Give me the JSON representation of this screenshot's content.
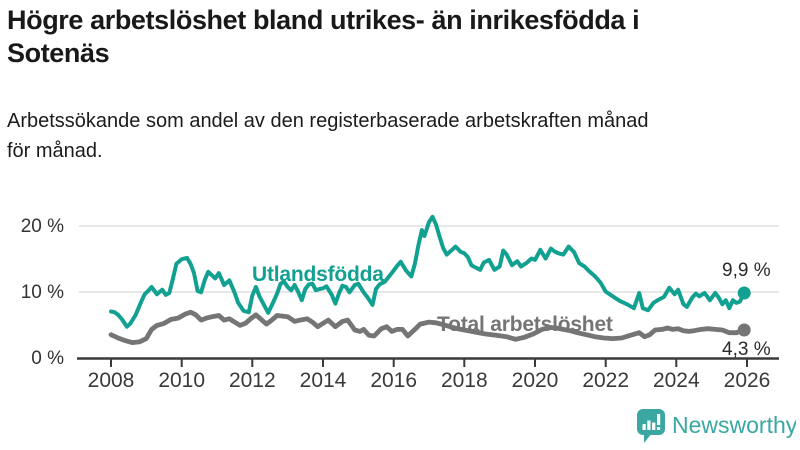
{
  "header": {
    "title_lines": [
      "Högre arbetslöshet bland utrikes- än inrikesfödda i",
      "Sotenäs"
    ],
    "subtitle_lines": [
      "Arbetssökande som andel av den registerbaserade arbetskraften månad",
      "för månad."
    ]
  },
  "branding": {
    "logo_text": "Newsworthy",
    "logo_icon": "bar-chart-speech-bubble",
    "brand_color": "#3aa7a2"
  },
  "chart_data": {
    "type": "line",
    "title": "Högre arbetslöshet bland utrikes- än inrikesfödda i Sotenäs",
    "subtitle": "Arbetssökande som andel av den registerbaserade arbetskraften månad för månad.",
    "grid": "horizontal",
    "legend_position": "inline-labels",
    "x_axis": {
      "ticks": [
        2008,
        2010,
        2012,
        2014,
        2016,
        2018,
        2020,
        2022,
        2024,
        2026
      ],
      "range": [
        2007.1,
        2026.9
      ]
    },
    "y_axis": {
      "ticks": [
        0,
        10,
        20
      ],
      "tick_labels": [
        "0 %",
        "10 %",
        "20 %"
      ],
      "unit": "%",
      "range": [
        0,
        23
      ]
    },
    "colors": {
      "utlandsfodda": "#12a091",
      "total": "#757575",
      "axis": "#3a3a3a",
      "gridline": "#d9d9d9"
    },
    "series": [
      {
        "name": "Utlandsfödda",
        "color": "#12a091",
        "end_label": "9,9 %",
        "end_value": 9.9,
        "points": [
          [
            2008.0,
            7.1
          ],
          [
            2008.1,
            7.0
          ],
          [
            2008.2,
            6.6
          ],
          [
            2008.3,
            6.0
          ],
          [
            2008.45,
            4.8
          ],
          [
            2008.55,
            5.3
          ],
          [
            2008.7,
            6.6
          ],
          [
            2008.85,
            8.5
          ],
          [
            2008.95,
            9.7
          ],
          [
            2009.05,
            10.2
          ],
          [
            2009.15,
            10.8
          ],
          [
            2009.3,
            9.7
          ],
          [
            2009.45,
            10.4
          ],
          [
            2009.55,
            9.6
          ],
          [
            2009.65,
            9.9
          ],
          [
            2009.75,
            12.0
          ],
          [
            2009.85,
            14.3
          ],
          [
            2010.0,
            15.0
          ],
          [
            2010.15,
            15.2
          ],
          [
            2010.25,
            14.3
          ],
          [
            2010.35,
            12.9
          ],
          [
            2010.45,
            10.2
          ],
          [
            2010.55,
            10.0
          ],
          [
            2010.65,
            11.8
          ],
          [
            2010.75,
            13.1
          ],
          [
            2010.85,
            12.6
          ],
          [
            2010.95,
            12.1
          ],
          [
            2011.05,
            12.9
          ],
          [
            2011.2,
            11.1
          ],
          [
            2011.35,
            11.8
          ],
          [
            2011.5,
            9.9
          ],
          [
            2011.6,
            8.4
          ],
          [
            2011.75,
            7.2
          ],
          [
            2011.9,
            7.0
          ],
          [
            2012.0,
            9.5
          ],
          [
            2012.1,
            10.8
          ],
          [
            2012.2,
            9.4
          ],
          [
            2012.3,
            8.4
          ],
          [
            2012.45,
            6.9
          ],
          [
            2012.6,
            8.6
          ],
          [
            2012.7,
            9.8
          ],
          [
            2012.8,
            11.3
          ],
          [
            2012.9,
            11.6
          ],
          [
            2013.0,
            10.8
          ],
          [
            2013.1,
            10.3
          ],
          [
            2013.2,
            11.1
          ],
          [
            2013.3,
            10.0
          ],
          [
            2013.4,
            8.8
          ],
          [
            2013.5,
            10.5
          ],
          [
            2013.6,
            11.2
          ],
          [
            2013.7,
            11.3
          ],
          [
            2013.8,
            10.3
          ],
          [
            2013.9,
            10.5
          ],
          [
            2014.0,
            10.6
          ],
          [
            2014.1,
            10.9
          ],
          [
            2014.25,
            9.6
          ],
          [
            2014.35,
            8.3
          ],
          [
            2014.45,
            9.8
          ],
          [
            2014.55,
            11.0
          ],
          [
            2014.65,
            10.8
          ],
          [
            2014.75,
            10.0
          ],
          [
            2014.9,
            11.1
          ],
          [
            2015.0,
            11.3
          ],
          [
            2015.15,
            10.0
          ],
          [
            2015.25,
            9.3
          ],
          [
            2015.4,
            8.1
          ],
          [
            2015.5,
            10.5
          ],
          [
            2015.6,
            11.2
          ],
          [
            2015.75,
            11.6
          ],
          [
            2015.9,
            12.6
          ],
          [
            2016.0,
            13.3
          ],
          [
            2016.1,
            14.0
          ],
          [
            2016.2,
            14.6
          ],
          [
            2016.35,
            13.3
          ],
          [
            2016.5,
            12.4
          ],
          [
            2016.6,
            14.3
          ],
          [
            2016.7,
            17.1
          ],
          [
            2016.8,
            19.4
          ],
          [
            2016.87,
            18.5
          ],
          [
            2017.0,
            20.6
          ],
          [
            2017.1,
            21.4
          ],
          [
            2017.2,
            20.2
          ],
          [
            2017.3,
            18.4
          ],
          [
            2017.4,
            16.7
          ],
          [
            2017.5,
            15.7
          ],
          [
            2017.65,
            16.4
          ],
          [
            2017.75,
            16.9
          ],
          [
            2017.9,
            16.1
          ],
          [
            2018.0,
            15.9
          ],
          [
            2018.1,
            15.3
          ],
          [
            2018.2,
            14.1
          ],
          [
            2018.3,
            13.8
          ],
          [
            2018.45,
            13.4
          ],
          [
            2018.55,
            14.5
          ],
          [
            2018.7,
            14.9
          ],
          [
            2018.85,
            13.4
          ],
          [
            2019.0,
            13.9
          ],
          [
            2019.1,
            16.3
          ],
          [
            2019.2,
            15.7
          ],
          [
            2019.35,
            14.1
          ],
          [
            2019.5,
            14.7
          ],
          [
            2019.6,
            13.9
          ],
          [
            2019.75,
            14.4
          ],
          [
            2019.9,
            15.1
          ],
          [
            2020.0,
            14.9
          ],
          [
            2020.15,
            16.4
          ],
          [
            2020.3,
            15.1
          ],
          [
            2020.45,
            16.6
          ],
          [
            2020.55,
            16.2
          ],
          [
            2020.65,
            15.9
          ],
          [
            2020.8,
            15.7
          ],
          [
            2020.95,
            16.9
          ],
          [
            2021.1,
            16.1
          ],
          [
            2021.25,
            14.4
          ],
          [
            2021.4,
            13.9
          ],
          [
            2021.55,
            13.1
          ],
          [
            2021.7,
            12.4
          ],
          [
            2021.85,
            11.5
          ],
          [
            2022.0,
            10.1
          ],
          [
            2022.2,
            9.4
          ],
          [
            2022.4,
            8.7
          ],
          [
            2022.6,
            8.2
          ],
          [
            2022.8,
            7.6
          ],
          [
            2022.95,
            9.9
          ],
          [
            2023.05,
            7.6
          ],
          [
            2023.2,
            7.3
          ],
          [
            2023.35,
            8.4
          ],
          [
            2023.5,
            8.9
          ],
          [
            2023.65,
            9.3
          ],
          [
            2023.8,
            10.7
          ],
          [
            2023.95,
            9.7
          ],
          [
            2024.05,
            10.4
          ],
          [
            2024.2,
            8.2
          ],
          [
            2024.3,
            7.8
          ],
          [
            2024.45,
            9.2
          ],
          [
            2024.55,
            9.8
          ],
          [
            2024.65,
            9.4
          ],
          [
            2024.8,
            9.9
          ],
          [
            2024.95,
            8.8
          ],
          [
            2025.1,
            9.9
          ],
          [
            2025.2,
            9.2
          ],
          [
            2025.3,
            8.2
          ],
          [
            2025.4,
            8.8
          ],
          [
            2025.5,
            7.6
          ],
          [
            2025.6,
            8.8
          ],
          [
            2025.7,
            8.4
          ],
          [
            2025.8,
            8.6
          ],
          [
            2025.92,
            9.9
          ]
        ]
      },
      {
        "name": "Total arbetslöshet",
        "color": "#757575",
        "end_label": "4,3 %",
        "end_value": 4.3,
        "points": [
          [
            2008.0,
            3.6
          ],
          [
            2008.2,
            3.1
          ],
          [
            2008.4,
            2.7
          ],
          [
            2008.6,
            2.4
          ],
          [
            2008.8,
            2.5
          ],
          [
            2009.0,
            3.0
          ],
          [
            2009.15,
            4.4
          ],
          [
            2009.3,
            5.0
          ],
          [
            2009.5,
            5.3
          ],
          [
            2009.7,
            5.9
          ],
          [
            2009.9,
            6.1
          ],
          [
            2010.1,
            6.7
          ],
          [
            2010.25,
            7.0
          ],
          [
            2010.4,
            6.6
          ],
          [
            2010.55,
            5.8
          ],
          [
            2010.7,
            6.1
          ],
          [
            2010.85,
            6.3
          ],
          [
            2011.05,
            6.5
          ],
          [
            2011.2,
            5.8
          ],
          [
            2011.35,
            6.0
          ],
          [
            2011.5,
            5.5
          ],
          [
            2011.65,
            5.0
          ],
          [
            2011.8,
            5.3
          ],
          [
            2011.95,
            6.0
          ],
          [
            2012.1,
            6.6
          ],
          [
            2012.25,
            5.9
          ],
          [
            2012.4,
            5.2
          ],
          [
            2012.55,
            5.8
          ],
          [
            2012.7,
            6.5
          ],
          [
            2012.85,
            6.4
          ],
          [
            2013.0,
            6.3
          ],
          [
            2013.2,
            5.6
          ],
          [
            2013.35,
            5.8
          ],
          [
            2013.55,
            6.0
          ],
          [
            2013.7,
            5.5
          ],
          [
            2013.85,
            4.8
          ],
          [
            2014.0,
            5.3
          ],
          [
            2014.15,
            5.8
          ],
          [
            2014.35,
            4.8
          ],
          [
            2014.55,
            5.6
          ],
          [
            2014.7,
            5.8
          ],
          [
            2014.9,
            4.3
          ],
          [
            2015.05,
            4.1
          ],
          [
            2015.15,
            4.4
          ],
          [
            2015.3,
            3.5
          ],
          [
            2015.45,
            3.4
          ],
          [
            2015.65,
            4.5
          ],
          [
            2015.8,
            4.8
          ],
          [
            2015.95,
            4.1
          ],
          [
            2016.1,
            4.4
          ],
          [
            2016.25,
            4.4
          ],
          [
            2016.4,
            3.4
          ],
          [
            2016.6,
            4.4
          ],
          [
            2016.75,
            5.2
          ],
          [
            2017.0,
            5.5
          ],
          [
            2017.2,
            5.4
          ],
          [
            2017.4,
            5.1
          ],
          [
            2017.6,
            4.8
          ],
          [
            2017.8,
            4.5
          ],
          [
            2018.0,
            4.3
          ],
          [
            2018.3,
            4.0
          ],
          [
            2018.6,
            3.7
          ],
          [
            2018.9,
            3.5
          ],
          [
            2019.2,
            3.3
          ],
          [
            2019.45,
            2.9
          ],
          [
            2019.7,
            3.2
          ],
          [
            2019.95,
            3.7
          ],
          [
            2020.2,
            4.4
          ],
          [
            2020.4,
            4.7
          ],
          [
            2020.6,
            4.6
          ],
          [
            2020.8,
            4.4
          ],
          [
            2021.0,
            4.2
          ],
          [
            2021.2,
            3.9
          ],
          [
            2021.45,
            3.6
          ],
          [
            2021.7,
            3.3
          ],
          [
            2021.95,
            3.1
          ],
          [
            2022.2,
            3.0
          ],
          [
            2022.45,
            3.1
          ],
          [
            2022.7,
            3.5
          ],
          [
            2022.95,
            3.9
          ],
          [
            2023.1,
            3.3
          ],
          [
            2023.25,
            3.6
          ],
          [
            2023.4,
            4.3
          ],
          [
            2023.6,
            4.4
          ],
          [
            2023.75,
            4.6
          ],
          [
            2023.9,
            4.4
          ],
          [
            2024.05,
            4.5
          ],
          [
            2024.2,
            4.2
          ],
          [
            2024.35,
            4.1
          ],
          [
            2024.5,
            4.2
          ],
          [
            2024.7,
            4.4
          ],
          [
            2024.9,
            4.5
          ],
          [
            2025.1,
            4.4
          ],
          [
            2025.3,
            4.3
          ],
          [
            2025.5,
            3.9
          ],
          [
            2025.7,
            3.9
          ],
          [
            2025.92,
            4.3
          ]
        ]
      }
    ]
  }
}
